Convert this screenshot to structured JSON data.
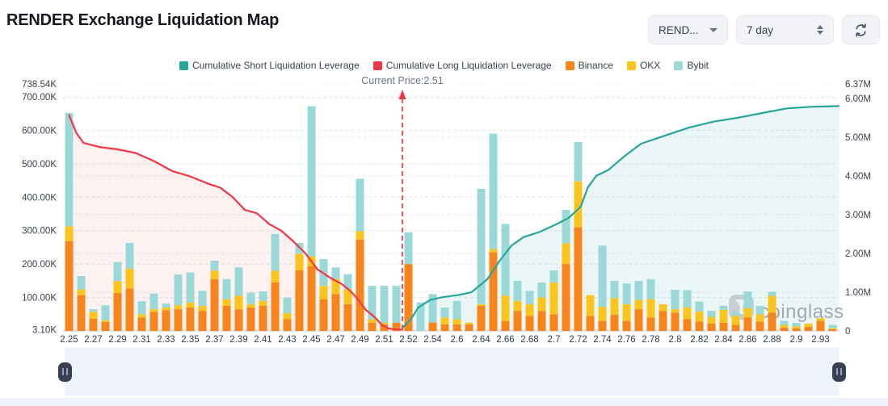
{
  "header": {
    "title": "RENDER Exchange Liquidation Map"
  },
  "controls": {
    "symbol": "REND...",
    "timeframe": "7 day"
  },
  "legend": {
    "items": [
      {
        "label": "Cumulative Short Liquidation Leverage",
        "color": "#26a69a"
      },
      {
        "label": "Cumulative Long Liquidation Leverage",
        "color": "#f23645"
      },
      {
        "label": "Binance",
        "color": "#f8851b"
      },
      {
        "label": "OKX",
        "color": "#fbc51d"
      },
      {
        "label": "Bybit",
        "color": "#9bd9d9"
      }
    ]
  },
  "watermark": {
    "text": "coinglass"
  },
  "chart_data": {
    "type": "bar",
    "subtype": "stacked-bars-with-cumulative-lines",
    "title": "RENDER Exchange Liquidation Map",
    "current_price_label": "Current Price:2.51",
    "current_price": 2.51,
    "current_price_index": 27.5,
    "grid": "dashed-horizontal",
    "left_axis": {
      "unit": "K",
      "max_value": 738.54,
      "ticks": [
        {
          "label": "738.54K",
          "value": 738.54
        },
        {
          "label": "700.00K",
          "value": 700
        },
        {
          "label": "600.00K",
          "value": 600
        },
        {
          "label": "500.00K",
          "value": 500
        },
        {
          "label": "400.00K",
          "value": 400
        },
        {
          "label": "300.00K",
          "value": 300
        },
        {
          "label": "200.00K",
          "value": 200
        },
        {
          "label": "100.00K",
          "value": 100
        },
        {
          "label": "3.10K",
          "value": 3.1
        }
      ]
    },
    "right_axis": {
      "unit": "M",
      "max_value": 6.37,
      "ticks": [
        {
          "label": "6.37M",
          "value": 6.37
        },
        {
          "label": "6.00M",
          "value": 6
        },
        {
          "label": "5.00M",
          "value": 5
        },
        {
          "label": "4.00M",
          "value": 4
        },
        {
          "label": "3.00M",
          "value": 3
        },
        {
          "label": "2.00M",
          "value": 2
        },
        {
          "label": "1.00M",
          "value": 1
        },
        {
          "label": "0",
          "value": 0
        }
      ]
    },
    "x_tick_labels": [
      "2.25",
      "2.27",
      "2.29",
      "2.31",
      "2.33",
      "2.35",
      "2.37",
      "2.39",
      "2.41",
      "2.43",
      "2.45",
      "2.47",
      "2.49",
      "2.51",
      "2.52",
      "2.54",
      "2.6",
      "2.64",
      "2.66",
      "2.68",
      "2.7",
      "2.72",
      "2.74",
      "2.76",
      "2.78",
      "2.8",
      "2.82",
      "2.84",
      "2.86",
      "2.88",
      "2.9",
      "2.93"
    ],
    "bars_per_label": 2,
    "series": [
      {
        "name": "Binance",
        "color": "#f8851b",
        "axis": "left",
        "unit": "K",
        "values": [
          268,
          107,
          37,
          27,
          114,
          127,
          40,
          57,
          62,
          65,
          70,
          60,
          155,
          75,
          65,
          70,
          75,
          145,
          35,
          181,
          193,
          95,
          110,
          80,
          273,
          25,
          20,
          25,
          200,
          0,
          25,
          20,
          20,
          20,
          75,
          235,
          30,
          60,
          45,
          60,
          50,
          200,
          310,
          45,
          30,
          48,
          30,
          65,
          40,
          60,
          55,
          35,
          28,
          22,
          25,
          18,
          40,
          28,
          55,
          10,
          8,
          12,
          30,
          5
        ]
      },
      {
        "name": "OKX",
        "color": "#fbc51d",
        "axis": "left",
        "unit": "K",
        "values": [
          45,
          17,
          20,
          5,
          35,
          59,
          10,
          8,
          8,
          12,
          15,
          15,
          25,
          20,
          40,
          10,
          15,
          35,
          18,
          50,
          30,
          40,
          45,
          45,
          25,
          10,
          5,
          0,
          0,
          0,
          0,
          20,
          15,
          5,
          5,
          10,
          75,
          30,
          35,
          40,
          95,
          62,
          137,
          62,
          42,
          50,
          50,
          28,
          55,
          20,
          10,
          35,
          30,
          20,
          38,
          27,
          28,
          22,
          50,
          8,
          6,
          10,
          8,
          3
        ]
      },
      {
        "name": "Bybit",
        "color": "#9bd9d9",
        "axis": "left",
        "unit": "K",
        "values": [
          339,
          40,
          8,
          45,
          57,
          77,
          39,
          47,
          12,
          92,
          90,
          45,
          30,
          60,
          85,
          35,
          28,
          110,
          47,
          32,
          449,
          80,
          35,
          45,
          157,
          100,
          110,
          110,
          95,
          85,
          85,
          30,
          55,
          0,
          345,
          345,
          215,
          60,
          40,
          45,
          36,
          100,
          118,
          0,
          183,
          52,
          62,
          57,
          60,
          0,
          58,
          52,
          30,
          18,
          12,
          12,
          50,
          25,
          12,
          12,
          10,
          0,
          0,
          10
        ]
      }
    ],
    "long_line": {
      "name": "Cumulative Long Liquidation Leverage",
      "color": "#f23645",
      "axis": "left",
      "unit": "K",
      "fill": "rgba(242,54,69,0.07)",
      "points": [
        [
          0,
          645
        ],
        [
          0.6,
          592
        ],
        [
          1.2,
          562
        ],
        [
          2.5,
          550
        ],
        [
          4,
          543
        ],
        [
          5.5,
          532
        ],
        [
          7,
          508
        ],
        [
          8.5,
          478
        ],
        [
          10,
          462
        ],
        [
          11.5,
          440
        ],
        [
          12.5,
          428
        ],
        [
          13.5,
          400
        ],
        [
          14.5,
          362
        ],
        [
          15.5,
          352
        ],
        [
          16.5,
          320
        ],
        [
          17.5,
          300
        ],
        [
          18.5,
          268
        ],
        [
          19.5,
          232
        ],
        [
          20.5,
          184
        ],
        [
          21.5,
          160
        ],
        [
          22.5,
          140
        ],
        [
          23.2,
          120
        ],
        [
          23.8,
          96
        ],
        [
          24.5,
          62
        ],
        [
          25.2,
          42
        ],
        [
          25.8,
          18
        ],
        [
          26.3,
          8
        ],
        [
          27,
          4
        ],
        [
          27.5,
          4
        ]
      ]
    },
    "short_line": {
      "name": "Cumulative Short Liquidation Leverage",
      "color": "#26a69a",
      "axis": "right",
      "unit": "M",
      "fill": "rgba(38,166,154,0.09)",
      "points": [
        [
          27.5,
          0.08
        ],
        [
          28.2,
          0.3
        ],
        [
          28.8,
          0.6
        ],
        [
          29.8,
          0.8
        ],
        [
          30.8,
          0.87
        ],
        [
          32.2,
          0.93
        ],
        [
          33.2,
          1.0
        ],
        [
          34.5,
          1.33
        ],
        [
          35.5,
          1.8
        ],
        [
          36.5,
          2.2
        ],
        [
          37.5,
          2.42
        ],
        [
          38.8,
          2.55
        ],
        [
          40.2,
          2.75
        ],
        [
          41.2,
          2.91
        ],
        [
          42.2,
          3.2
        ],
        [
          42.8,
          3.7
        ],
        [
          43.5,
          4.0
        ],
        [
          44.5,
          4.15
        ],
        [
          45.8,
          4.5
        ],
        [
          47.2,
          4.83
        ],
        [
          48.8,
          5.0
        ],
        [
          51.2,
          5.25
        ],
        [
          53.2,
          5.4
        ],
        [
          55.2,
          5.5
        ],
        [
          57.2,
          5.62
        ],
        [
          59.2,
          5.74
        ],
        [
          61.2,
          5.78
        ],
        [
          63.5,
          5.8
        ]
      ]
    }
  }
}
